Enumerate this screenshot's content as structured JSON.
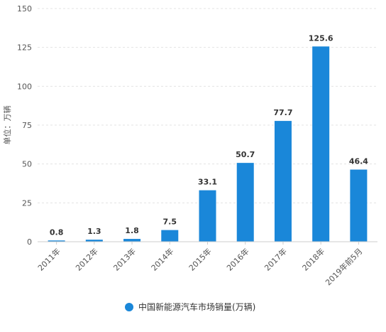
{
  "chart_data": {
    "type": "bar",
    "categories": [
      "2011年",
      "2012年",
      "2013年",
      "2014年",
      "2015年",
      "2016年",
      "2017年",
      "2018年",
      "2019年前5月"
    ],
    "series": [
      {
        "name": "中国新能源汽车市场销量(万辆)",
        "values": [
          0.8,
          1.3,
          1.8,
          7.5,
          33.1,
          50.7,
          77.7,
          125.6,
          46.4
        ],
        "data_labels": [
          "0.8",
          "1.3",
          "1.8",
          "7.5",
          "33.1",
          "50.7",
          "77.7",
          "125.6",
          "46.4"
        ],
        "color": "#1a87d9"
      }
    ],
    "ylabel": "单位：万辆",
    "xlabel": "",
    "ylim": [
      0,
      150
    ],
    "yticks": [
      "0",
      "25",
      "50",
      "75",
      "100",
      "125",
      "150"
    ],
    "grid": true,
    "legend": "bottom-center"
  }
}
